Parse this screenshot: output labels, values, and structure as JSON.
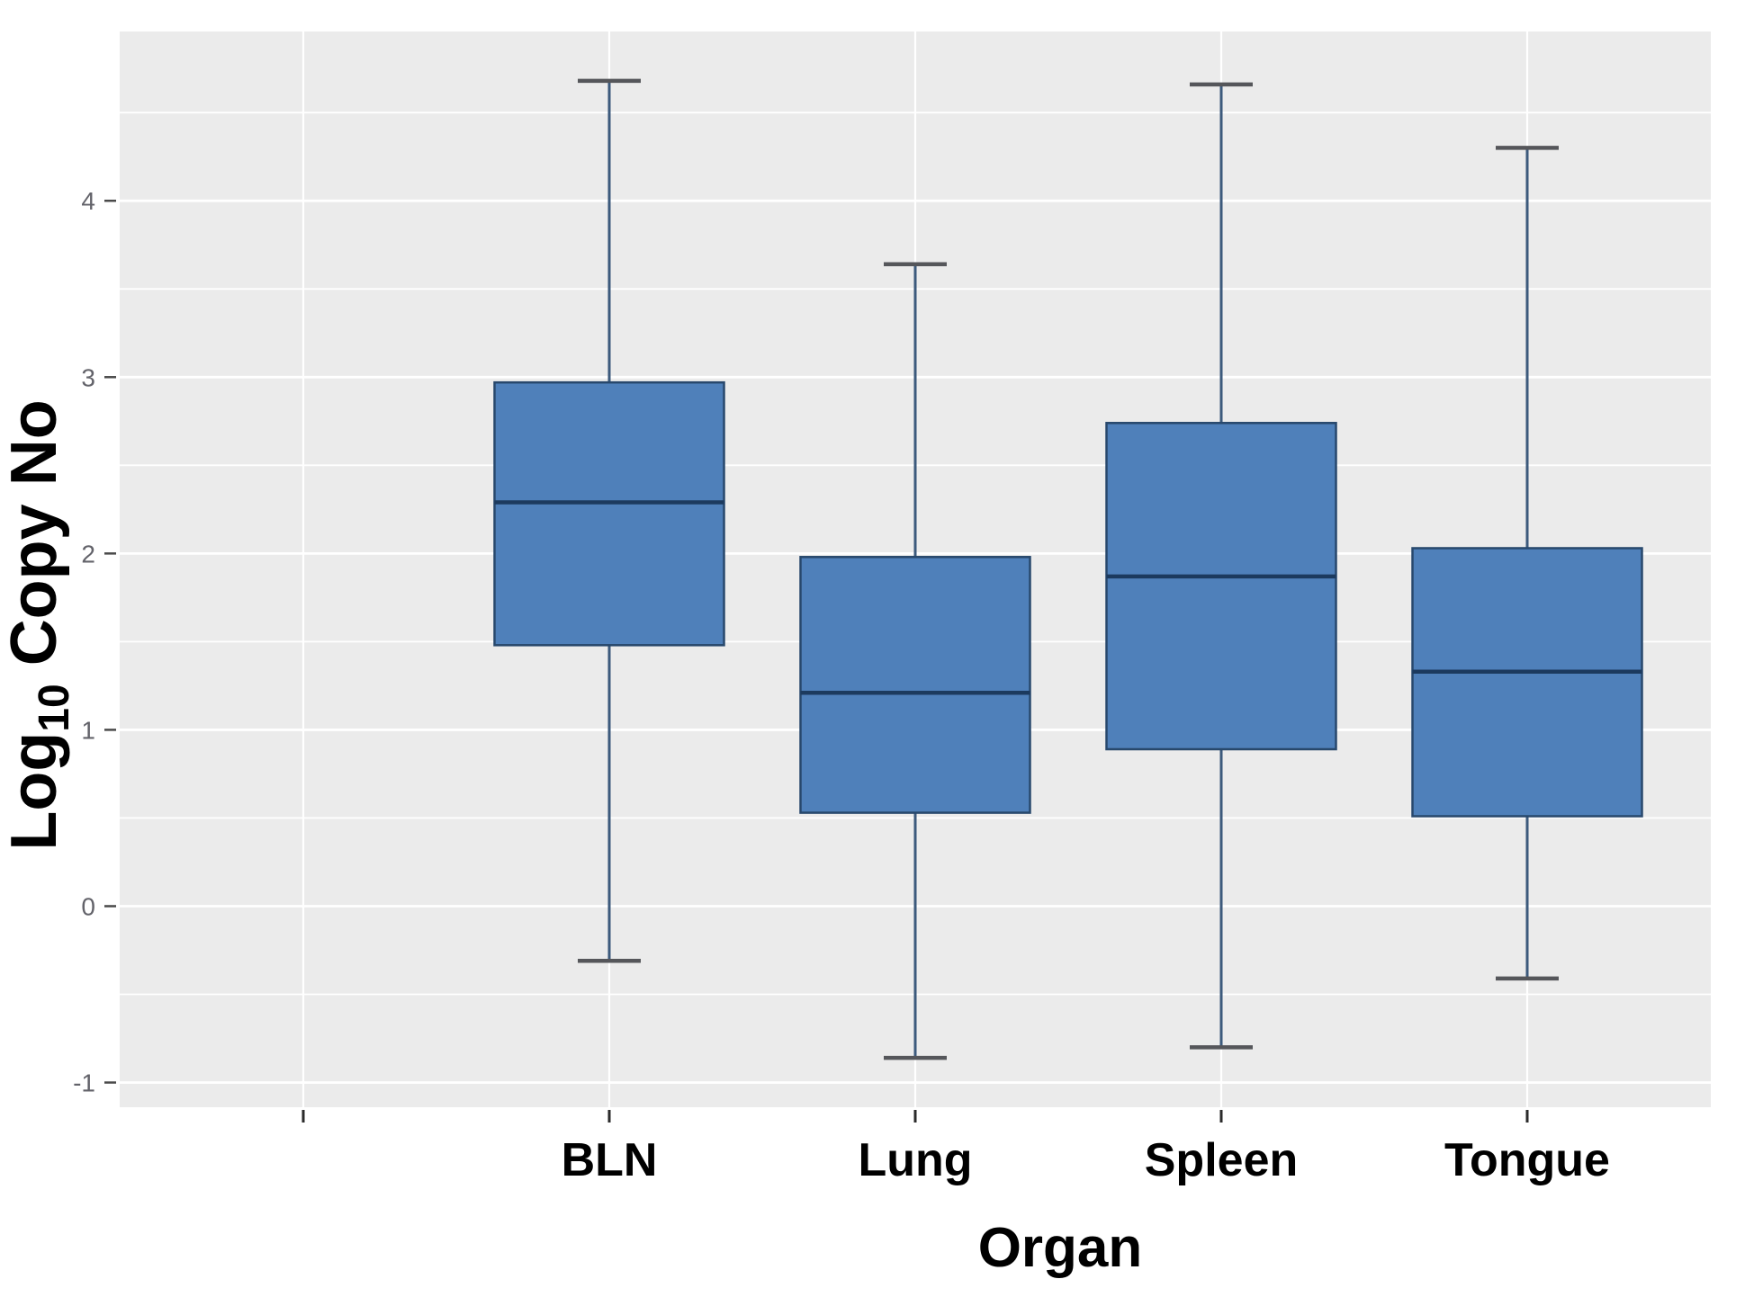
{
  "page": {
    "background": "#ffffff",
    "description": "Boxplot of Log10 viral copy number by organ"
  },
  "chart_data": {
    "type": "boxplot",
    "title": "",
    "xlabel": "Organ",
    "ylabel_parts": [
      {
        "text": "Log",
        "subscript": false
      },
      {
        "text": "10",
        "subscript": true
      },
      {
        "text": " Copy No",
        "subscript": false
      }
    ],
    "categories": [
      "",
      "BLN",
      "Lung",
      "Spleen",
      "Tongue"
    ],
    "series": [
      {
        "category": "BLN",
        "whisker_low": -0.31,
        "q1": 1.48,
        "median": 2.29,
        "q3": 2.97,
        "whisker_high": 4.68
      },
      {
        "category": "Lung",
        "whisker_low": -0.86,
        "q1": 0.53,
        "median": 1.21,
        "q3": 1.98,
        "whisker_high": 3.64
      },
      {
        "category": "Spleen",
        "whisker_low": -0.8,
        "q1": 0.89,
        "median": 1.87,
        "q3": 2.74,
        "whisker_high": 4.66
      },
      {
        "category": "Tongue",
        "whisker_low": -0.41,
        "q1": 0.51,
        "median": 1.33,
        "q3": 2.03,
        "whisker_high": 4.3
      }
    ],
    "y_ticks": [
      4,
      3,
      2,
      1,
      0,
      -1
    ],
    "y_minor_gridlines": [
      4.5,
      3.5,
      2.5,
      1.5,
      0.5,
      -0.5
    ],
    "ylim": [
      -1.14,
      4.96
    ],
    "legend": "none",
    "grid": "horizontal major every 1.0 and minor every 0.5 (white on grey panel), vertical white line at each category"
  },
  "palette": {
    "panel_bg": "#ebebeb",
    "gridline": "#ffffff",
    "box_fill": "#4f80ba",
    "box_stroke": "#28486c",
    "median_line": "#1c3a5e",
    "whisker_stem": "#3c5a7c",
    "whisker_cap": "#55565a",
    "y_tick_label": "#63636a",
    "y_tick_mark": "#4a4a4a",
    "x_tick_mark": "#2b2b2b",
    "axis_label": "#000000"
  }
}
